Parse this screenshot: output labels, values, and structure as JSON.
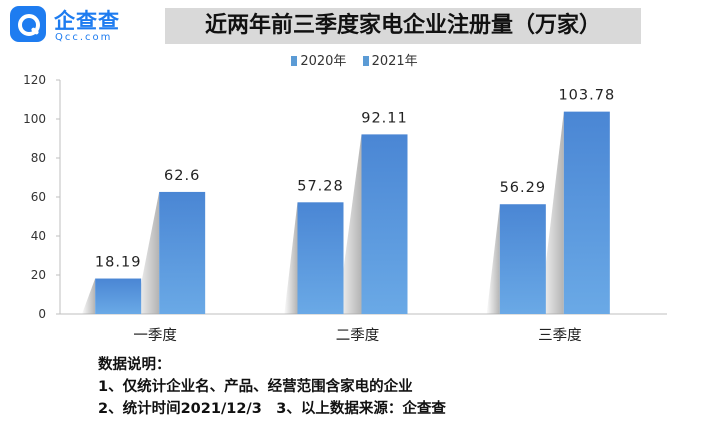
{
  "logo": {
    "name": "企查查",
    "domain": "Qcc.com"
  },
  "chart_data": {
    "type": "bar",
    "title": "近两年前三季度家电企业注册量（万家）",
    "categories": [
      "一季度",
      "二季度",
      "三季度"
    ],
    "series": [
      {
        "name": "2020年",
        "values": [
          18.19,
          57.28,
          56.29
        ],
        "labels": [
          "18.19",
          "57.28",
          "56.29"
        ]
      },
      {
        "name": "2021年",
        "values": [
          62.6,
          92.11,
          103.78
        ],
        "labels": [
          "62.6",
          "92.11",
          "103.78"
        ]
      }
    ],
    "ylim": [
      0,
      120
    ],
    "yticks": [
      0,
      20,
      40,
      60,
      80,
      100,
      120
    ],
    "ytick_labels": [
      "0",
      "20",
      "40",
      "60",
      "80",
      "100",
      "120"
    ],
    "legend_position": "top",
    "grid": false,
    "colors": {
      "bar_top": "#4a86d4",
      "bar_bottom": "#6aa9e6",
      "shadow": "#a6a6a6"
    }
  },
  "notes": {
    "heading": "数据说明：",
    "line1": "1、仅统计企业名、产品、经营范围含家电的企业",
    "line2": "2、统计时间2021/12/3　3、以上数据来源：企查查"
  }
}
